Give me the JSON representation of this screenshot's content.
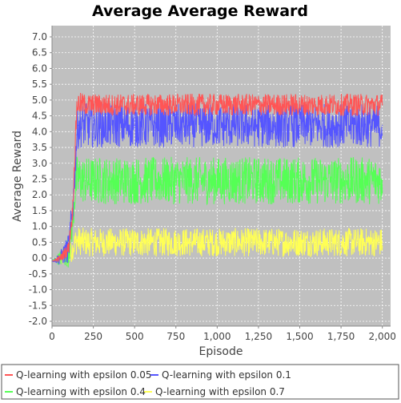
{
  "chart_data": {
    "type": "line",
    "title": "Average Average Reward",
    "xlabel": "Episode",
    "ylabel": "Average Reward",
    "xlim": [
      0,
      2000
    ],
    "ylim": [
      -2.0,
      7.0
    ],
    "x_ticks": [
      0,
      250,
      500,
      750,
      1000,
      1250,
      1500,
      1750,
      2000
    ],
    "x_tick_labels": [
      "0",
      "250",
      "500",
      "750",
      "1,000",
      "1,250",
      "1,500",
      "1,750",
      "2,000"
    ],
    "y_ticks": [
      -2.0,
      -1.5,
      -1.0,
      -0.5,
      0.0,
      0.5,
      1.0,
      1.5,
      2.0,
      2.5,
      3.0,
      3.5,
      4.0,
      4.5,
      5.0,
      5.5,
      6.0,
      6.5,
      7.0
    ],
    "y_tick_labels": [
      "-2.0",
      "-1.5",
      "-1.0",
      "-0.5",
      "0.0",
      "0.5",
      "1.0",
      "1.5",
      "2.0",
      "2.5",
      "3.0",
      "3.5",
      "4.0",
      "4.5",
      "5.0",
      "5.5",
      "6.0",
      "6.5",
      "7.0"
    ],
    "grid": true,
    "legend_position": "bottom",
    "plot_background": "#c0c0c0",
    "series": [
      {
        "name": "Q-learning with epsilon 0.05",
        "color": "#ff5555",
        "x": [
          0,
          50,
          100,
          125,
          140,
          150,
          160,
          200,
          250,
          500,
          750,
          1000,
          1250,
          1500,
          1750,
          2000
        ],
        "y": [
          -0.1,
          0.0,
          0.3,
          1.5,
          3.5,
          4.8,
          4.9,
          4.85,
          4.85,
          4.85,
          4.85,
          4.85,
          4.85,
          4.85,
          4.85,
          4.85
        ]
      },
      {
        "name": "Q-learning with epsilon 0.1",
        "color": "#5555ff",
        "x": [
          0,
          50,
          100,
          125,
          140,
          150,
          160,
          200,
          250,
          500,
          750,
          1000,
          1250,
          1500,
          1750,
          2000
        ],
        "y": [
          -0.1,
          0.0,
          0.3,
          1.5,
          3.0,
          3.9,
          4.2,
          4.2,
          4.2,
          4.2,
          4.2,
          4.2,
          4.2,
          4.2,
          4.2,
          4.2
        ]
      },
      {
        "name": "Q-learning with epsilon 0.4",
        "color": "#55ff55",
        "x": [
          0,
          50,
          100,
          125,
          140,
          150,
          160,
          200,
          250,
          500,
          750,
          1000,
          1250,
          1500,
          1750,
          2000
        ],
        "y": [
          -0.1,
          0.0,
          0.2,
          1.2,
          2.2,
          2.5,
          2.5,
          2.45,
          2.45,
          2.45,
          2.45,
          2.45,
          2.45,
          2.45,
          2.45,
          2.45
        ]
      },
      {
        "name": "Q-learning with epsilon 0.7",
        "color": "#ffff55",
        "x": [
          0,
          50,
          100,
          125,
          140,
          150,
          160,
          200,
          250,
          500,
          750,
          1000,
          1250,
          1500,
          1750,
          2000
        ],
        "y": [
          -0.1,
          -0.05,
          0.0,
          0.3,
          0.5,
          0.55,
          0.55,
          0.5,
          0.5,
          0.5,
          0.5,
          0.5,
          0.5,
          0.5,
          0.5,
          0.5
        ]
      }
    ]
  }
}
